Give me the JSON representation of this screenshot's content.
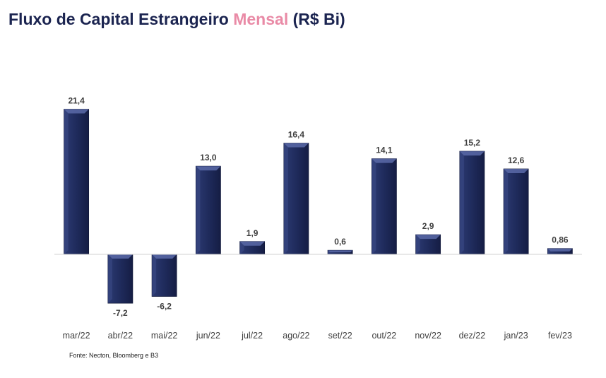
{
  "title": {
    "part1": "Fluxo de Capital Estrangeiro ",
    "highlight": "Mensal",
    "part2": " (R$ Bi)"
  },
  "source": "Fonte: Necton, Bloomberg e B3",
  "colors": {
    "bar": "#1f2b5c",
    "bar_light": "#4a5a99",
    "highlight": "#e98aa6",
    "title": "#1b2450"
  },
  "chart_data": {
    "type": "bar",
    "title": "Fluxo de Capital Estrangeiro Mensal (R$ Bi)",
    "categories": [
      "mar/22",
      "abr/22",
      "mai/22",
      "jun/22",
      "jul/22",
      "ago/22",
      "set/22",
      "out/22",
      "nov/22",
      "dez/22",
      "jan/23",
      "fev/23"
    ],
    "values": [
      21.4,
      -7.2,
      -6.2,
      13.0,
      1.9,
      16.4,
      0.6,
      14.1,
      2.9,
      15.2,
      12.6,
      0.86
    ],
    "labels": [
      "21,4",
      "-7,2",
      "-6,2",
      "13,0",
      "1,9",
      "16,4",
      "0,6",
      "14,1",
      "2,9",
      "15,2",
      "12,6",
      "0,86"
    ],
    "xlabel": "",
    "ylabel": "",
    "grid": false,
    "legend": "none"
  }
}
